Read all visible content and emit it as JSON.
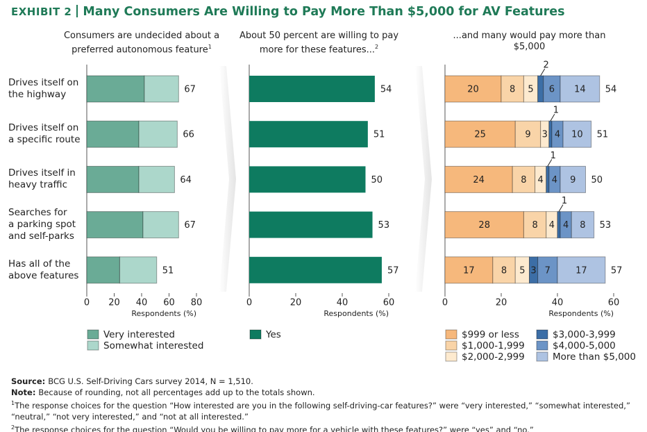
{
  "exhibit": "EXHIBIT 2",
  "title": "Many Consumers Are Willing to Pay More Than $5,000 for AV Features",
  "chart_data": [
    {
      "type": "stacked-bar-h",
      "subtitle": "Consumers are undecided about a preferred autonomous feature",
      "note_marker": "1",
      "categories": [
        "Drives itself on\nthe highway",
        "Drives itself on\na specific route",
        "Drives itself in\nheavy traffic",
        "Searches for\na parking spot\nand self-parks",
        "Has all of the\nabove features"
      ],
      "series": [
        {
          "name": "Very interested",
          "color": "#6aab96",
          "values": [
            42,
            38,
            38,
            41,
            24
          ]
        },
        {
          "name": "Somewhat interested",
          "color": "#acd7cb",
          "values": [
            25,
            28,
            26,
            26,
            27
          ]
        }
      ],
      "totals": [
        67,
        66,
        64,
        67,
        51
      ],
      "xlim": [
        0,
        80
      ],
      "xticks": [
        0,
        20,
        40,
        60,
        80
      ],
      "xlabel": "Respondents (%)"
    },
    {
      "type": "bar-h",
      "subtitle": "About 50 percent are willing to pay more for these features...",
      "note_marker": "2",
      "series": [
        {
          "name": "Yes",
          "color": "#0e7b60",
          "values": [
            54,
            51,
            50,
            53,
            57
          ]
        }
      ],
      "xlim": [
        0,
        60
      ],
      "xticks": [
        0,
        20,
        40,
        60
      ],
      "xlabel": "Respondents (%)"
    },
    {
      "type": "stacked-bar-h",
      "subtitle": "...and many would pay more than $5,000",
      "segment_labels": true,
      "series": [
        {
          "name": "$999 or less",
          "color": "#f6b87c",
          "values": [
            20,
            25,
            24,
            28,
            17
          ]
        },
        {
          "name": "$1,000-1,999",
          "color": "#f9d4a8",
          "values": [
            8,
            9,
            8,
            8,
            8
          ]
        },
        {
          "name": "$2,000-2,999",
          "color": "#fdeacf",
          "values": [
            5,
            3,
            4,
            4,
            5
          ]
        },
        {
          "name": "$3,000-3,999",
          "color": "#3c6ea6",
          "values": [
            2,
            1,
            1,
            1,
            3
          ]
        },
        {
          "name": "$4,000-5,000",
          "color": "#6c94c6",
          "values": [
            6,
            4,
            4,
            4,
            7
          ]
        },
        {
          "name": "More than $5,000",
          "color": "#aec3e2",
          "values": [
            14,
            10,
            9,
            8,
            17
          ]
        }
      ],
      "totals": [
        54,
        51,
        50,
        53,
        57
      ],
      "xlim": [
        0,
        60
      ],
      "xticks": [
        0,
        20,
        40,
        60
      ],
      "xlabel": "Respondents (%)"
    }
  ],
  "footnotes": [
    {
      "label": "Source:",
      "text": "BCG U.S. Self-Driving Cars survey 2014, N = 1,510."
    },
    {
      "label": "Note:",
      "text": "Because of rounding, not all percentages add up to the totals shown."
    },
    {
      "marker": "1",
      "text": "The response choices for the question “How interested are you in the following self-driving-car features?” were “very interested,” “somewhat interested,” “neutral,” “not very interested,” and “not at all interested.”"
    },
    {
      "marker": "2",
      "text": "The response choices for the question “Would you be willing to pay more for a vehicle with these features?” were “yes” and “no.”"
    }
  ]
}
